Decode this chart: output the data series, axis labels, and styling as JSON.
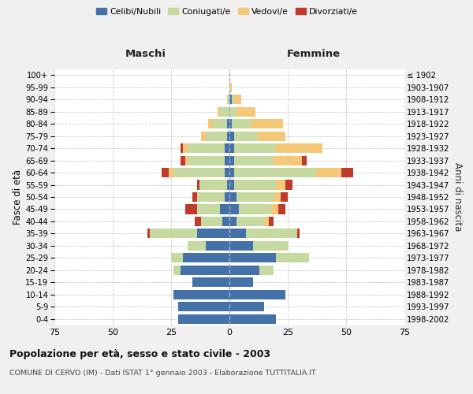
{
  "age_groups": [
    "0-4",
    "5-9",
    "10-14",
    "15-19",
    "20-24",
    "25-29",
    "30-34",
    "35-39",
    "40-44",
    "45-49",
    "50-54",
    "55-59",
    "60-64",
    "65-69",
    "70-74",
    "75-79",
    "80-84",
    "85-89",
    "90-94",
    "95-99",
    "100+"
  ],
  "birth_years": [
    "1998-2002",
    "1993-1997",
    "1988-1992",
    "1983-1987",
    "1978-1982",
    "1973-1977",
    "1968-1972",
    "1963-1967",
    "1958-1962",
    "1953-1957",
    "1948-1952",
    "1943-1947",
    "1938-1942",
    "1933-1937",
    "1928-1932",
    "1923-1927",
    "1918-1922",
    "1913-1917",
    "1908-1912",
    "1903-1907",
    "≤ 1902"
  ],
  "maschi": {
    "celibi": [
      22,
      22,
      24,
      16,
      21,
      20,
      10,
      14,
      3,
      4,
      2,
      1,
      2,
      2,
      2,
      1,
      1,
      0,
      0,
      0,
      0
    ],
    "coniugati": [
      0,
      0,
      0,
      0,
      3,
      5,
      8,
      20,
      9,
      10,
      12,
      12,
      22,
      16,
      16,
      9,
      6,
      4,
      1,
      0,
      0
    ],
    "vedovi": [
      0,
      0,
      0,
      0,
      0,
      0,
      0,
      0,
      0,
      0,
      0,
      0,
      2,
      1,
      2,
      2,
      2,
      1,
      0,
      0,
      0
    ],
    "divorziati": [
      0,
      0,
      0,
      0,
      0,
      0,
      0,
      1,
      3,
      5,
      2,
      1,
      3,
      2,
      1,
      0,
      0,
      0,
      0,
      0,
      0
    ]
  },
  "femmine": {
    "nubili": [
      20,
      15,
      24,
      10,
      13,
      20,
      10,
      7,
      3,
      4,
      3,
      2,
      2,
      2,
      2,
      2,
      1,
      0,
      1,
      0,
      0
    ],
    "coniugate": [
      0,
      0,
      0,
      0,
      6,
      14,
      15,
      22,
      12,
      14,
      16,
      18,
      35,
      17,
      18,
      10,
      8,
      3,
      1,
      0,
      0
    ],
    "vedove": [
      0,
      0,
      0,
      0,
      0,
      0,
      0,
      0,
      2,
      3,
      3,
      4,
      11,
      12,
      20,
      12,
      14,
      8,
      3,
      1,
      0
    ],
    "divorziate": [
      0,
      0,
      0,
      0,
      0,
      0,
      0,
      1,
      2,
      3,
      3,
      3,
      5,
      2,
      0,
      0,
      0,
      0,
      0,
      0,
      0
    ]
  },
  "colors": {
    "celibi": "#4472a8",
    "coniugati": "#c5d9a0",
    "vedovi": "#f5c878",
    "divorziati": "#c0392b"
  },
  "title": "Popolazione per età, sesso e stato civile - 2003",
  "subtitle": "COMUNE DI CERVO (IM) - Dati ISTAT 1° gennaio 2003 - Elaborazione TUTTITALIA.IT",
  "xlabel_left": "Maschi",
  "xlabel_right": "Femmine",
  "ylabel_left": "Fasce di età",
  "ylabel_right": "Anni di nascita",
  "xlim": 75,
  "bg_color": "#f0f0f0",
  "plot_bg": "#ffffff"
}
